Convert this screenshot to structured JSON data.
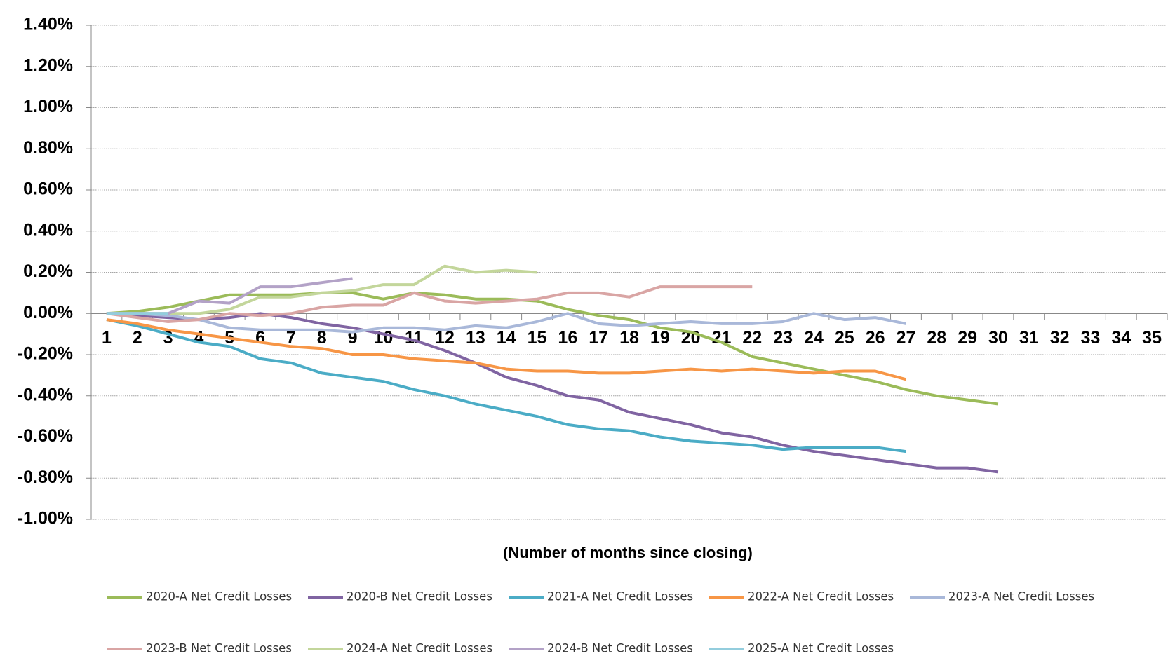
{
  "chart_data": {
    "type": "line",
    "x_label": "(Number of months since closing)",
    "categories": [
      1,
      2,
      3,
      4,
      5,
      6,
      7,
      8,
      9,
      10,
      11,
      12,
      13,
      14,
      15,
      16,
      17,
      18,
      19,
      20,
      21,
      22,
      23,
      24,
      25,
      26,
      27,
      28,
      29,
      30,
      31,
      32,
      33,
      34,
      35
    ],
    "ylim": [
      -1.0,
      1.4
    ],
    "yticks": [
      {
        "value": 1.4,
        "label": "1.40%"
      },
      {
        "value": 1.2,
        "label": "1.20%"
      },
      {
        "value": 1.0,
        "label": "1.00%"
      },
      {
        "value": 0.8,
        "label": "0.80%"
      },
      {
        "value": 0.6,
        "label": "0.60%"
      },
      {
        "value": 0.4,
        "label": "0.40%"
      },
      {
        "value": 0.2,
        "label": "0.20%"
      },
      {
        "value": 0,
        "label": "0.00%"
      },
      {
        "value": -0.2,
        "label": "-0.20%"
      },
      {
        "value": -0.4,
        "label": "-0.40%"
      },
      {
        "value": -0.6,
        "label": "-0.60%"
      },
      {
        "value": -0.8,
        "label": "-0.80%"
      },
      {
        "value": -1.0,
        "label": "-1.00%"
      }
    ],
    "grid": true,
    "legend": "bottom",
    "series": [
      {
        "name": "2020-A Net Credit Losses",
        "color": "#9bbb59",
        "values": [
          0,
          0.01,
          0.03,
          0.06,
          0.09,
          0.09,
          0.09,
          0.1,
          0.1,
          0.07,
          0.1,
          0.09,
          0.07,
          0.07,
          0.06,
          0.02,
          -0.01,
          -0.03,
          -0.07,
          -0.09,
          -0.14,
          -0.21,
          -0.24,
          -0.27,
          -0.3,
          -0.33,
          -0.37,
          -0.4,
          -0.42,
          -0.44,
          null,
          null,
          null,
          null,
          null
        ]
      },
      {
        "name": "2020-B Net Credit Losses",
        "color": "#8064a2",
        "values": [
          0,
          -0.01,
          -0.02,
          -0.03,
          -0.02,
          0,
          -0.02,
          -0.05,
          -0.07,
          -0.1,
          -0.13,
          -0.18,
          -0.24,
          -0.31,
          -0.35,
          -0.4,
          -0.42,
          -0.48,
          -0.51,
          -0.54,
          -0.58,
          -0.6,
          -0.64,
          -0.67,
          -0.69,
          -0.71,
          -0.73,
          -0.75,
          -0.75,
          -0.77,
          null,
          null,
          null,
          null,
          null
        ]
      },
      {
        "name": "2021-A Net Credit Losses",
        "color": "#4bacc6",
        "values": [
          -0.03,
          -0.06,
          -0.1,
          -0.14,
          -0.16,
          -0.22,
          -0.24,
          -0.29,
          -0.31,
          -0.33,
          -0.37,
          -0.4,
          -0.44,
          -0.47,
          -0.5,
          -0.54,
          -0.56,
          -0.57,
          -0.6,
          -0.62,
          -0.63,
          -0.64,
          -0.66,
          -0.65,
          -0.65,
          -0.65,
          -0.67,
          null,
          null,
          null,
          null,
          null,
          null,
          null,
          null
        ]
      },
      {
        "name": "2022-A Net Credit Losses",
        "color": "#f79646",
        "values": [
          -0.03,
          -0.05,
          -0.08,
          -0.1,
          -0.12,
          -0.14,
          -0.16,
          -0.17,
          -0.2,
          -0.2,
          -0.22,
          -0.23,
          -0.24,
          -0.27,
          -0.28,
          -0.28,
          -0.29,
          -0.29,
          -0.28,
          -0.27,
          -0.28,
          -0.27,
          -0.28,
          -0.29,
          -0.28,
          -0.28,
          -0.32,
          null,
          null,
          null,
          null,
          null,
          null,
          null,
          null
        ]
      },
      {
        "name": "2023-A Net Credit Losses",
        "color": "#a9b8d9",
        "values": [
          0,
          0,
          -0.01,
          -0.03,
          -0.07,
          -0.08,
          -0.08,
          -0.08,
          -0.09,
          -0.07,
          -0.07,
          -0.08,
          -0.06,
          -0.07,
          -0.04,
          0,
          -0.05,
          -0.06,
          -0.05,
          -0.04,
          -0.05,
          -0.05,
          -0.04,
          0,
          -0.03,
          -0.02,
          -0.05,
          null,
          null,
          null,
          null,
          null,
          null,
          null,
          null
        ]
      },
      {
        "name": "2023-B Net Credit Losses",
        "color": "#d9a5a4",
        "values": [
          0,
          -0.02,
          -0.04,
          -0.03,
          0,
          -0.01,
          0,
          0.03,
          0.04,
          0.04,
          0.1,
          0.06,
          0.05,
          0.06,
          0.07,
          0.1,
          0.1,
          0.08,
          0.13,
          0.13,
          0.13,
          0.13,
          null,
          null,
          null,
          null,
          null,
          null,
          null,
          null,
          null,
          null,
          null,
          null,
          null
        ]
      },
      {
        "name": "2024-A Net Credit Losses",
        "color": "#c3d69b",
        "values": [
          0,
          0,
          0,
          0,
          0.02,
          0.08,
          0.08,
          0.1,
          0.11,
          0.14,
          0.14,
          0.23,
          0.2,
          0.21,
          0.2,
          null,
          null,
          null,
          null,
          null,
          null,
          null,
          null,
          null,
          null,
          null,
          null,
          null,
          null,
          null,
          null,
          null,
          null,
          null,
          null
        ]
      },
      {
        "name": "2024-B Net Credit Losses",
        "color": "#b3a2c7",
        "values": [
          0,
          0,
          0,
          0.06,
          0.05,
          0.13,
          0.13,
          0.15,
          0.17,
          null,
          null,
          null,
          null,
          null,
          null,
          null,
          null,
          null,
          null,
          null,
          null,
          null,
          null,
          null,
          null,
          null,
          null,
          null,
          null,
          null,
          null,
          null,
          null,
          null,
          null
        ]
      },
      {
        "name": "2025-A Net Credit Losses",
        "color": "#93cddd",
        "values": [
          0,
          0,
          0,
          null,
          null,
          null,
          null,
          null,
          null,
          null,
          null,
          null,
          null,
          null,
          null,
          null,
          null,
          null,
          null,
          null,
          null,
          null,
          null,
          null,
          null,
          null,
          null,
          null,
          null,
          null,
          null,
          null,
          null,
          null,
          null
        ]
      }
    ]
  }
}
